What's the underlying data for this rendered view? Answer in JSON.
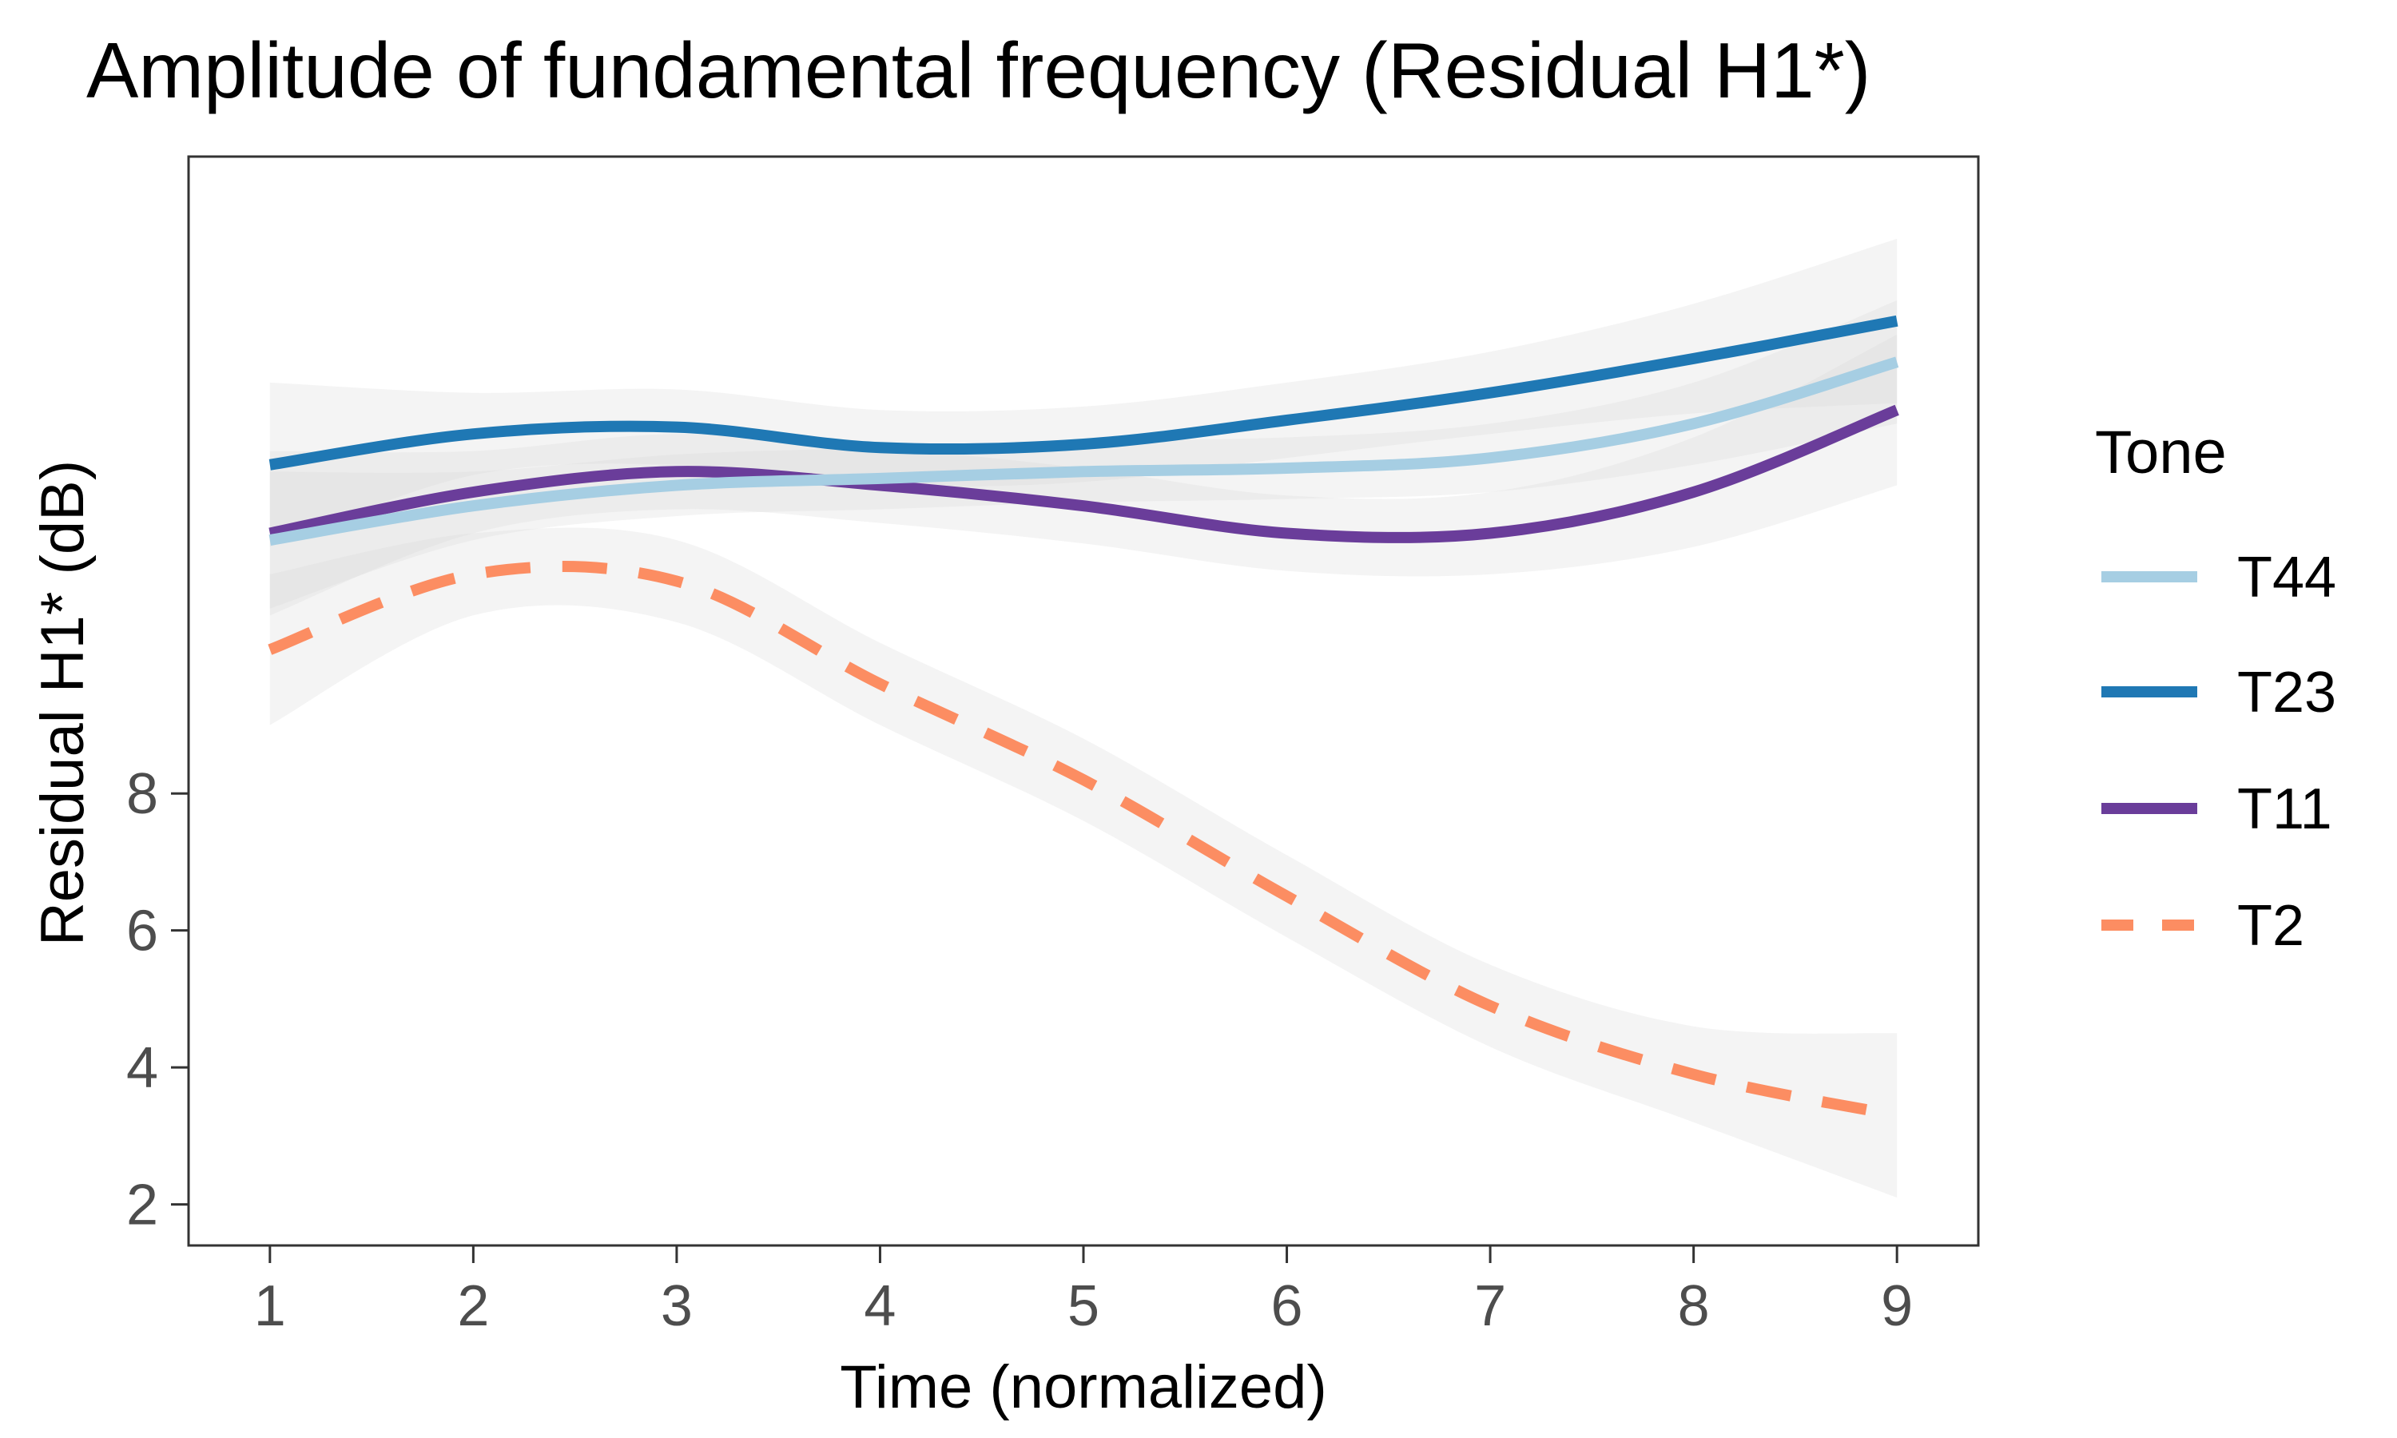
{
  "chart_data": {
    "type": "line",
    "title": "Amplitude of fundamental frequency (Residual H1*)",
    "xlabel": "Time (normalized)",
    "ylabel": "Residual H1* (dB)",
    "x": [
      1,
      2,
      3,
      4,
      5,
      6,
      7,
      8,
      9
    ],
    "x_ticks": [
      "1",
      "2",
      "3",
      "4",
      "5",
      "6",
      "7",
      "8",
      "9"
    ],
    "y_ticks": [
      "2",
      "4",
      "6",
      "8"
    ],
    "xlim": [
      0.6,
      9.4
    ],
    "ylim": [
      1.4,
      17.3
    ],
    "grid": false,
    "legend": {
      "title": "Tone",
      "placement": "right"
    },
    "series": [
      {
        "name": "T44",
        "color": "#a6cee3",
        "dashed": false,
        "values": [
          11.7,
          12.2,
          12.5,
          12.6,
          12.7,
          12.75,
          12.9,
          13.4,
          14.3
        ],
        "band": [
          1.0,
          0.5,
          0.45,
          0.45,
          0.45,
          0.45,
          0.5,
          0.6,
          0.9
        ]
      },
      {
        "name": "T23",
        "color": "#1f78b4",
        "dashed": false,
        "values": [
          12.8,
          13.25,
          13.35,
          13.05,
          13.1,
          13.45,
          13.85,
          14.35,
          14.9
        ],
        "band": [
          1.2,
          0.6,
          0.55,
          0.55,
          0.55,
          0.55,
          0.6,
          0.8,
          1.2
        ]
      },
      {
        "name": "T11",
        "color": "#6a3d9a",
        "dashed": false,
        "values": [
          11.8,
          12.4,
          12.7,
          12.5,
          12.2,
          11.8,
          11.8,
          12.4,
          13.6
        ],
        "band": [
          1.2,
          0.6,
          0.55,
          0.55,
          0.55,
          0.55,
          0.6,
          0.8,
          1.1
        ]
      },
      {
        "name": "T2",
        "color": "#fc8d62",
        "dashed": true,
        "values": [
          10.1,
          11.2,
          11.1,
          9.6,
          8.2,
          6.5,
          4.9,
          3.9,
          3.3
        ],
        "band": [
          1.1,
          0.6,
          0.6,
          0.6,
          0.6,
          0.6,
          0.6,
          0.7,
          1.2
        ]
      }
    ]
  }
}
